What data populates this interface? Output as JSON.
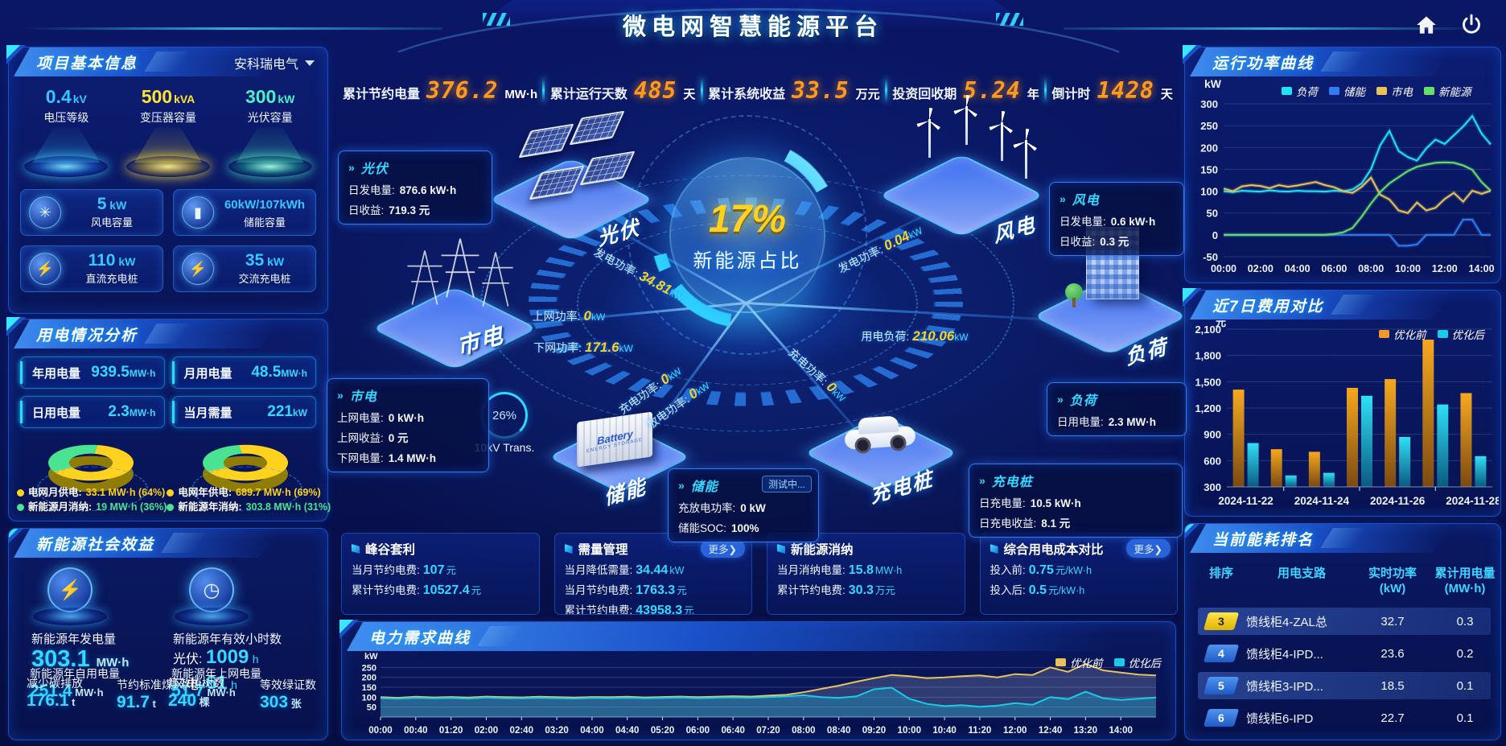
{
  "header": {
    "title": "微电网智慧能源平台"
  },
  "icons": {
    "home": "home-icon",
    "power": "power-icon",
    "dropdown": "chevron-down-icon",
    "glyphs": {
      "wind-turbine-icon": "✳",
      "battery-icon": "▮",
      "dc-charger-icon": "⚡",
      "ac-charger-icon": "⚡",
      "generator-icon": "⚡",
      "clock-icon": "◷"
    }
  },
  "colors": {
    "accent": "#2fd8ff",
    "yellow": "#ffd21f",
    "orange": "#ff9a1e",
    "green": "#49e392"
  },
  "kpi_bar": [
    {
      "label": "累计节约电量",
      "value": "376.2",
      "unit": "MW·h"
    },
    {
      "label": "累计运行天数",
      "value": "485",
      "unit": "天"
    },
    {
      "label": "累计系统收益",
      "value": "33.5",
      "unit": "万元"
    },
    {
      "label": "投资回收期",
      "value": "5.24",
      "unit": "年"
    },
    {
      "label": "倒计时",
      "value": "1428",
      "unit": "天"
    }
  ],
  "project_info": {
    "title": "项目基本信息",
    "company": "安科瑞电气",
    "pedestals": [
      {
        "value": "0.4",
        "unit": "kV",
        "label": "电压等级",
        "color": "#35c6ff"
      },
      {
        "value": "500",
        "unit": "kVA",
        "label": "变压器容量",
        "color": "#ffe232"
      },
      {
        "value": "300",
        "unit": "kW",
        "label": "光伏容量",
        "color": "#4df0c2"
      }
    ],
    "cards": [
      {
        "value": "5",
        "unit": "kW",
        "label": "风电容量",
        "icon": "wind-turbine-icon"
      },
      {
        "value": "60kW/107kWh",
        "unit": "",
        "label": "储能容量",
        "icon": "battery-icon"
      },
      {
        "value": "110",
        "unit": "kW",
        "label": "直流充电桩",
        "icon": "dc-charger-icon"
      },
      {
        "value": "35",
        "unit": "kW",
        "label": "交流充电桩",
        "icon": "ac-charger-icon"
      }
    ]
  },
  "power_analysis": {
    "title": "用电情况分析",
    "stats": [
      {
        "label": "年用电量",
        "value": "939.5",
        "unit": "MW·h"
      },
      {
        "label": "月用电量",
        "value": "48.5",
        "unit": "MW·h"
      },
      {
        "label": "日用电量",
        "value": "2.3",
        "unit": "MW·h"
      },
      {
        "label": "当月需量",
        "value": "221",
        "unit": "kW"
      }
    ],
    "donuts": [
      {
        "percent_yellow": 64,
        "percent_green": 36,
        "legend": [
          {
            "label": "电网月供电:",
            "value": "33.1 MW·h (64%)",
            "color": "#ffd21f"
          },
          {
            "label": "新能源月消纳:",
            "value": "19 MW·h (36%)",
            "color": "#49e392"
          }
        ]
      },
      {
        "percent_yellow": 69,
        "percent_green": 31,
        "legend": [
          {
            "label": "电网年供电:",
            "value": "689.7 MW·h (69%)",
            "color": "#ffd21f"
          },
          {
            "label": "新能源年消纳:",
            "value": "303.8 MW·h (31%)",
            "color": "#49e392"
          }
        ]
      }
    ]
  },
  "social_benefit": {
    "title": "新能源社会效益",
    "left": {
      "icon": "generator-icon",
      "label": "新能源年发电量",
      "value": "303.1",
      "unit": "MW·h",
      "sub": [
        {
          "label": "新能源年自用电量",
          "value": "251.4",
          "unit": "MW·h"
        },
        {
          "label": "减少碳排放",
          "value": "176.1",
          "unit": "t"
        },
        {
          "label": "节约标准煤",
          "value": "91.7",
          "unit": "t"
        }
      ]
    },
    "right": {
      "icon": "clock-icon",
      "label": "新能源年有效小时数",
      "lines": [
        {
          "k": "光伏:",
          "v": "1009",
          "u": "h"
        },
        {
          "k": "风电:",
          "v": "61",
          "u": "h"
        }
      ],
      "sub": [
        {
          "label": "新能源年上网电量",
          "value": "51.7",
          "unit": "MW·h"
        },
        {
          "label": "等效植树数",
          "value": "240",
          "unit": "棵"
        },
        {
          "label": "等效绿证数",
          "value": "303",
          "unit": "张"
        }
      ]
    }
  },
  "diagram": {
    "center": {
      "pct": "17%",
      "label": "新能源占比"
    },
    "nodes": [
      {
        "id": "pv",
        "label": "光伏"
      },
      {
        "id": "wind",
        "label": "风电"
      },
      {
        "id": "grid",
        "label": "市电"
      },
      {
        "id": "storage",
        "label": "储能"
      },
      {
        "id": "charger",
        "label": "充电桩"
      },
      {
        "id": "load",
        "label": "负荷"
      }
    ],
    "storage_unit": {
      "line1": "Battery",
      "line2": "ENERGY STORAGE"
    },
    "info_boxes": [
      {
        "id": "pv",
        "title": "光伏",
        "rows": [
          {
            "k": "日发电量:",
            "v": "876.6 kW·h"
          },
          {
            "k": "日收益:",
            "v": "719.3 元"
          }
        ]
      },
      {
        "id": "grid",
        "title": "市电",
        "rows": [
          {
            "k": "上网电量:",
            "v": "0 kW·h"
          },
          {
            "k": "上网收益:",
            "v": "0 元"
          },
          {
            "k": "下网电量:",
            "v": "1.4 MW·h"
          }
        ]
      },
      {
        "id": "wind",
        "title": "风电",
        "rows": [
          {
            "k": "日发电量:",
            "v": "0.6 kW·h"
          },
          {
            "k": "日收益:",
            "v": "0.3 元"
          }
        ]
      },
      {
        "id": "load",
        "title": "负荷",
        "rows": [
          {
            "k": "日用电量:",
            "v": "2.3 MW·h"
          }
        ]
      },
      {
        "id": "storage",
        "title": "储能",
        "badge": "测试中...",
        "rows": [
          {
            "k": "充放电功率:",
            "v": "0 kW"
          },
          {
            "k": "储能SOC:",
            "v": "100%"
          }
        ]
      },
      {
        "id": "charger",
        "title": "充电桩",
        "rows": [
          {
            "k": "日充电量:",
            "v": "10.5 kW·h"
          },
          {
            "k": "日充电收益:",
            "v": "8.1 元"
          }
        ]
      }
    ],
    "flows": [
      {
        "label": "发电功率:",
        "value": "34.81",
        "unit": "kW"
      },
      {
        "label": "上网功率:",
        "value": "0",
        "unit": "kW"
      },
      {
        "label": "下网功率:",
        "value": "171.6",
        "unit": "kW"
      },
      {
        "label": "发电功率:",
        "value": "0.04",
        "unit": "kW"
      },
      {
        "label": "用电负荷:",
        "value": "210.06",
        "unit": "kW"
      },
      {
        "label": "充电功率:",
        "value": "0",
        "unit": "kW"
      },
      {
        "label": "放电功率:",
        "value": "0",
        "unit": "kW"
      },
      {
        "label": "充电功率:",
        "value": "0",
        "unit": "kW"
      }
    ],
    "transformer": {
      "pct": "26%",
      "label": "10kV Trans."
    }
  },
  "benefit_cards": [
    {
      "title": "峰谷套利",
      "rows": [
        {
          "k": "当月节约电费:",
          "v": "107",
          "u": "元"
        },
        {
          "k": "累计节约电费:",
          "v": "10527.4",
          "u": "元"
        }
      ]
    },
    {
      "title": "需量管理",
      "more_label": "更多❯",
      "rows": [
        {
          "k": "当月降低需量:",
          "v": "34.44",
          "u": "kW"
        },
        {
          "k": "当月节约电费:",
          "v": "1763.3",
          "u": "元"
        },
        {
          "k": "累计节约电费:",
          "v": "43958.3",
          "u": "元"
        }
      ]
    },
    {
      "title": "新能源消纳",
      "rows": [
        {
          "k": "当月消纳电量:",
          "v": "15.8",
          "u": "MW·h"
        },
        {
          "k": "累计节约电费:",
          "v": "30.3",
          "u": "万元"
        }
      ]
    },
    {
      "title": "综合用电成本对比",
      "more_label": "更多❯",
      "rows": [
        {
          "k": "投入前:",
          "v": "0.75",
          "u": "元/kW·h"
        },
        {
          "k": "投入后:",
          "v": "0.5",
          "u": "元/kW·h"
        }
      ]
    }
  ],
  "energy_ranking": {
    "title": "当前能耗排名",
    "headers": [
      {
        "t1": "排序",
        "t2": ""
      },
      {
        "t1": "用电支路",
        "t2": ""
      },
      {
        "t1": "实时功率",
        "t2": "(kW)"
      },
      {
        "t1": "累计用电量",
        "t2": "(MW·h)"
      }
    ],
    "rows": [
      {
        "rank": "3",
        "branch": "馈线柜4-ZAL总",
        "power": "32.7",
        "energy": "0.3",
        "highlight": true,
        "rank_style": "yellow"
      },
      {
        "rank": "4",
        "branch": "馈线柜4-IPD...",
        "power": "23.6",
        "energy": "0.2",
        "highlight": false,
        "rank_style": "blue"
      },
      {
        "rank": "5",
        "branch": "馈线柜3-IPD...",
        "power": "18.5",
        "energy": "0.1",
        "highlight": true,
        "rank_style": "blue"
      },
      {
        "rank": "6",
        "branch": "馈线柜6-IPD",
        "power": "22.7",
        "energy": "0.1",
        "highlight": false,
        "rank_style": "blue"
      }
    ]
  },
  "chart_data": [
    {
      "id": "power-curve",
      "type": "line",
      "title": "运行功率曲线",
      "ylabel": "kW",
      "ylim": [
        -50,
        300
      ],
      "yticks": [
        -50,
        0,
        50,
        100,
        150,
        200,
        250,
        300
      ],
      "x_step": 0.5,
      "x_max": 14.5,
      "xtick_values": [
        0,
        2,
        4,
        6,
        8,
        10,
        12,
        14
      ],
      "xticks": [
        "00:00",
        "02:00",
        "04:00",
        "06:00",
        "08:00",
        "10:00",
        "12:00",
        "14:00"
      ],
      "legend_position": "top",
      "grid": true,
      "series": [
        {
          "name": "负荷",
          "color": "#1ee3f7",
          "values": [
            100,
            98,
            101,
            100,
            99,
            102,
            100,
            99,
            101,
            100,
            100,
            99,
            101,
            100,
            104,
            118,
            150,
            205,
            238,
            192,
            178,
            170,
            198,
            218,
            208,
            228,
            248,
            272,
            232,
            207
          ]
        },
        {
          "name": "储能",
          "color": "#2f7df0",
          "values": [
            0,
            0,
            0,
            0,
            0,
            0,
            0,
            0,
            0,
            0,
            0,
            0,
            0,
            0,
            0,
            0,
            0,
            0,
            0,
            -25,
            -25,
            -22,
            0,
            0,
            0,
            0,
            35,
            35,
            0,
            0
          ]
        },
        {
          "name": "市电",
          "color": "#e8c35a",
          "values": [
            106,
            100,
            111,
            114,
            112,
            107,
            114,
            110,
            113,
            117,
            121,
            114,
            109,
            100,
            96,
            110,
            131,
            92,
            81,
            56,
            50,
            74,
            56,
            62,
            82,
            96,
            76,
            101,
            94,
            101
          ]
        },
        {
          "name": "新能源",
          "color": "#67e06b",
          "values": [
            0,
            0,
            0,
            0,
            0,
            0,
            0,
            0,
            0,
            0,
            0,
            0,
            2,
            6,
            16,
            42,
            72,
            98,
            118,
            132,
            146,
            156,
            161,
            165,
            166,
            165,
            159,
            149,
            121,
            101
          ]
        }
      ]
    },
    {
      "id": "cost-compare",
      "type": "bar",
      "title": "近7日费用对比",
      "ylabel": "元",
      "ylim": [
        300,
        2100
      ],
      "yticks": [
        300,
        600,
        900,
        1200,
        1500,
        1800,
        2100
      ],
      "ytick_labels": [
        "300",
        "600",
        "900",
        "1,200",
        "1,500",
        "1,800",
        "2,100"
      ],
      "categories": [
        "2024-11-22",
        "2024-11-23",
        "2024-11-24",
        "2024-11-25",
        "2024-11-26",
        "2024-11-27",
        "2024-11-28"
      ],
      "xtick_indices": [
        0,
        2,
        4,
        6
      ],
      "legend_position": "top-right",
      "grid": true,
      "series": [
        {
          "name": "优化前",
          "color": "#f09a28",
          "values": [
            1410,
            730,
            700,
            1430,
            1530,
            1980,
            1370
          ]
        },
        {
          "name": "优化后",
          "color": "#18cbe8",
          "values": [
            800,
            430,
            460,
            1340,
            870,
            1240,
            650
          ]
        }
      ]
    },
    {
      "id": "demand-curve",
      "type": "area",
      "title": "电力需求曲线",
      "ylabel": "kW",
      "ylim": [
        0,
        300
      ],
      "yticks": [
        50,
        100,
        150,
        200,
        250
      ],
      "xtick_every": 2,
      "xticks": [
        "00:00",
        "00:40",
        "01:20",
        "02:00",
        "02:40",
        "03:20",
        "04:00",
        "04:40",
        "05:20",
        "06:00",
        "06:40",
        "07:20",
        "08:00",
        "08:40",
        "09:20",
        "10:00",
        "10:40",
        "11:20",
        "12:00",
        "12:40",
        "13:20",
        "14:00"
      ],
      "legend_position": "top-right",
      "grid": true,
      "series": [
        {
          "name": "优化前",
          "color": "#e8c35a",
          "values": [
            100,
            97,
            102,
            99,
            101,
            98,
            103,
            100,
            99,
            102,
            100,
            98,
            101,
            100,
            102,
            99,
            101,
            103,
            100,
            102,
            105,
            103,
            108,
            112,
            125,
            142,
            158,
            178,
            196,
            212,
            206,
            196,
            200,
            206,
            210,
            200,
            216,
            212,
            250,
            228,
            268,
            235,
            224,
            214,
            210
          ]
        },
        {
          "name": "优化后",
          "color": "#18cbe8",
          "values": [
            95,
            92,
            97,
            94,
            96,
            93,
            98,
            95,
            94,
            97,
            95,
            93,
            96,
            95,
            97,
            94,
            96,
            98,
            95,
            97,
            99,
            97,
            100,
            104,
            110,
            100,
            96,
            104,
            140,
            148,
            92,
            66,
            55,
            60,
            52,
            58,
            70,
            62,
            100,
            90,
            128,
            95,
            86,
            92,
            98
          ]
        }
      ]
    }
  ]
}
